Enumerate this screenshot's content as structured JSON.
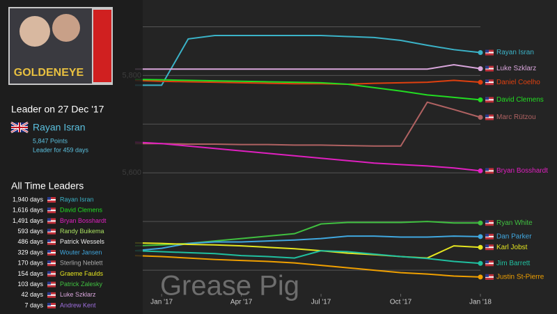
{
  "chart_data": {
    "type": "line",
    "x": [
      "2016-12",
      "2017-01",
      "2017-02",
      "2017-03",
      "2017-04",
      "2017-05",
      "2017-06",
      "2017-07",
      "2017-08",
      "2017-09",
      "2017-10",
      "2017-11",
      "2017-12",
      "2018-01"
    ],
    "xlim": [
      "2016-12",
      "2018-01"
    ],
    "xticks": [
      {
        "value": "2017-01",
        "label": "Jan '17"
      },
      {
        "value": "2017-04",
        "label": "Apr '17"
      },
      {
        "value": "2017-07",
        "label": "Jul '17"
      },
      {
        "value": "2017-10",
        "label": "Oct '17"
      },
      {
        "value": "2018-01",
        "label": "Jan '18"
      }
    ],
    "ylim": [
      5310,
      5955
    ],
    "yticks": [
      {
        "value": 5600,
        "label": "5,600"
      },
      {
        "value": 5800,
        "label": "5,800"
      }
    ],
    "ygrid": [
      5400,
      5500,
      5700,
      5900
    ],
    "series": [
      {
        "name": "Rayan Isran",
        "color": "#3bb3c8",
        "values": [
          5780,
          5780,
          5875,
          5882,
          5882,
          5882,
          5882,
          5882,
          5880,
          5878,
          5872,
          5862,
          5853,
          5847
        ]
      },
      {
        "name": "Luke Szklarz",
        "color": "#d9a6dc",
        "values": [
          5813,
          5813,
          5813,
          5813,
          5813,
          5813,
          5813,
          5813,
          5813,
          5813,
          5813,
          5813,
          5822,
          5814
        ]
      },
      {
        "name": "Daniel Coelho",
        "color": "#e0400f",
        "values": [
          5790,
          5788,
          5787,
          5786,
          5785,
          5784,
          5783,
          5783,
          5782,
          5784,
          5785,
          5786,
          5790,
          5786
        ]
      },
      {
        "name": "David Clemens",
        "color": "#22dd22",
        "values": [
          5792,
          5791,
          5790,
          5789,
          5788,
          5787,
          5786,
          5785,
          5782,
          5775,
          5768,
          5760,
          5755,
          5750
        ]
      },
      {
        "name": "Marc Rützou",
        "color": "#b06262",
        "values": [
          5660,
          5660,
          5659,
          5659,
          5658,
          5658,
          5657,
          5657,
          5656,
          5655,
          5655,
          5745,
          5730,
          5714
        ]
      },
      {
        "name": "Bryan Bosshardt",
        "color": "#e020c0",
        "values": [
          5663,
          5660,
          5655,
          5650,
          5645,
          5640,
          5635,
          5630,
          5625,
          5620,
          5617,
          5614,
          5610,
          5604
        ]
      },
      {
        "name": "Ryan White",
        "color": "#40c040",
        "values": [
          5450,
          5452,
          5455,
          5460,
          5465,
          5470,
          5475,
          5495,
          5498,
          5498,
          5498,
          5500,
          5497,
          5497
        ]
      },
      {
        "name": "Dan Parker",
        "color": "#40a8e0",
        "values": [
          5440,
          5445,
          5455,
          5458,
          5458,
          5460,
          5462,
          5465,
          5470,
          5470,
          5468,
          5468,
          5470,
          5469
        ]
      },
      {
        "name": "Karl Jobst",
        "color": "#e6e620",
        "values": [
          5456,
          5455,
          5453,
          5452,
          5450,
          5447,
          5444,
          5440,
          5435,
          5432,
          5428,
          5425,
          5450,
          5447
        ]
      },
      {
        "name": "Jim Barrett",
        "color": "#20c0a0",
        "values": [
          5440,
          5438,
          5436,
          5434,
          5430,
          5428,
          5425,
          5440,
          5438,
          5433,
          5428,
          5424,
          5418,
          5414
        ]
      },
      {
        "name": "Justin St-Pierre",
        "color": "#f0a000",
        "values": [
          5430,
          5428,
          5425,
          5422,
          5420,
          5418,
          5415,
          5410,
          5405,
          5400,
          5395,
          5392,
          5388,
          5386
        ]
      }
    ]
  },
  "leader": {
    "heading": "Leader on 27 Dec '17",
    "name": "Rayan Isran",
    "points": "5,847 Points",
    "duration": "Leader for 459 days"
  },
  "all_time_leaders": {
    "title": "All Time Leaders",
    "rows": [
      {
        "days": "1,940 days",
        "name": "Rayan Isran",
        "color": "#3bb3c8"
      },
      {
        "days": "1,616 days",
        "name": "David Clemens",
        "color": "#22dd22"
      },
      {
        "days": "1,491 days",
        "name": "Bryan Bosshardt",
        "color": "#e020c0"
      },
      {
        "days": "593 days",
        "name": "Randy Buikema",
        "color": "#a8e060"
      },
      {
        "days": "486 days",
        "name": "Patrick Wessels",
        "color": "#eeeeee"
      },
      {
        "days": "329 days",
        "name": "Wouter Jansen",
        "color": "#40a8e0"
      },
      {
        "days": "170 days",
        "name": "Sterling Neblett",
        "color": "#aaaaaa"
      },
      {
        "days": "154 days",
        "name": "Graeme Faulds",
        "color": "#e6e620"
      },
      {
        "days": "103 days",
        "name": "Patrick Zalesky",
        "color": "#40c040"
      },
      {
        "days": "42 days",
        "name": "Luke Szklarz",
        "color": "#d9a6dc"
      },
      {
        "days": "7 days",
        "name": "Andrew Kent",
        "color": "#a070e0"
      }
    ]
  },
  "watermark": "Grease Pig"
}
